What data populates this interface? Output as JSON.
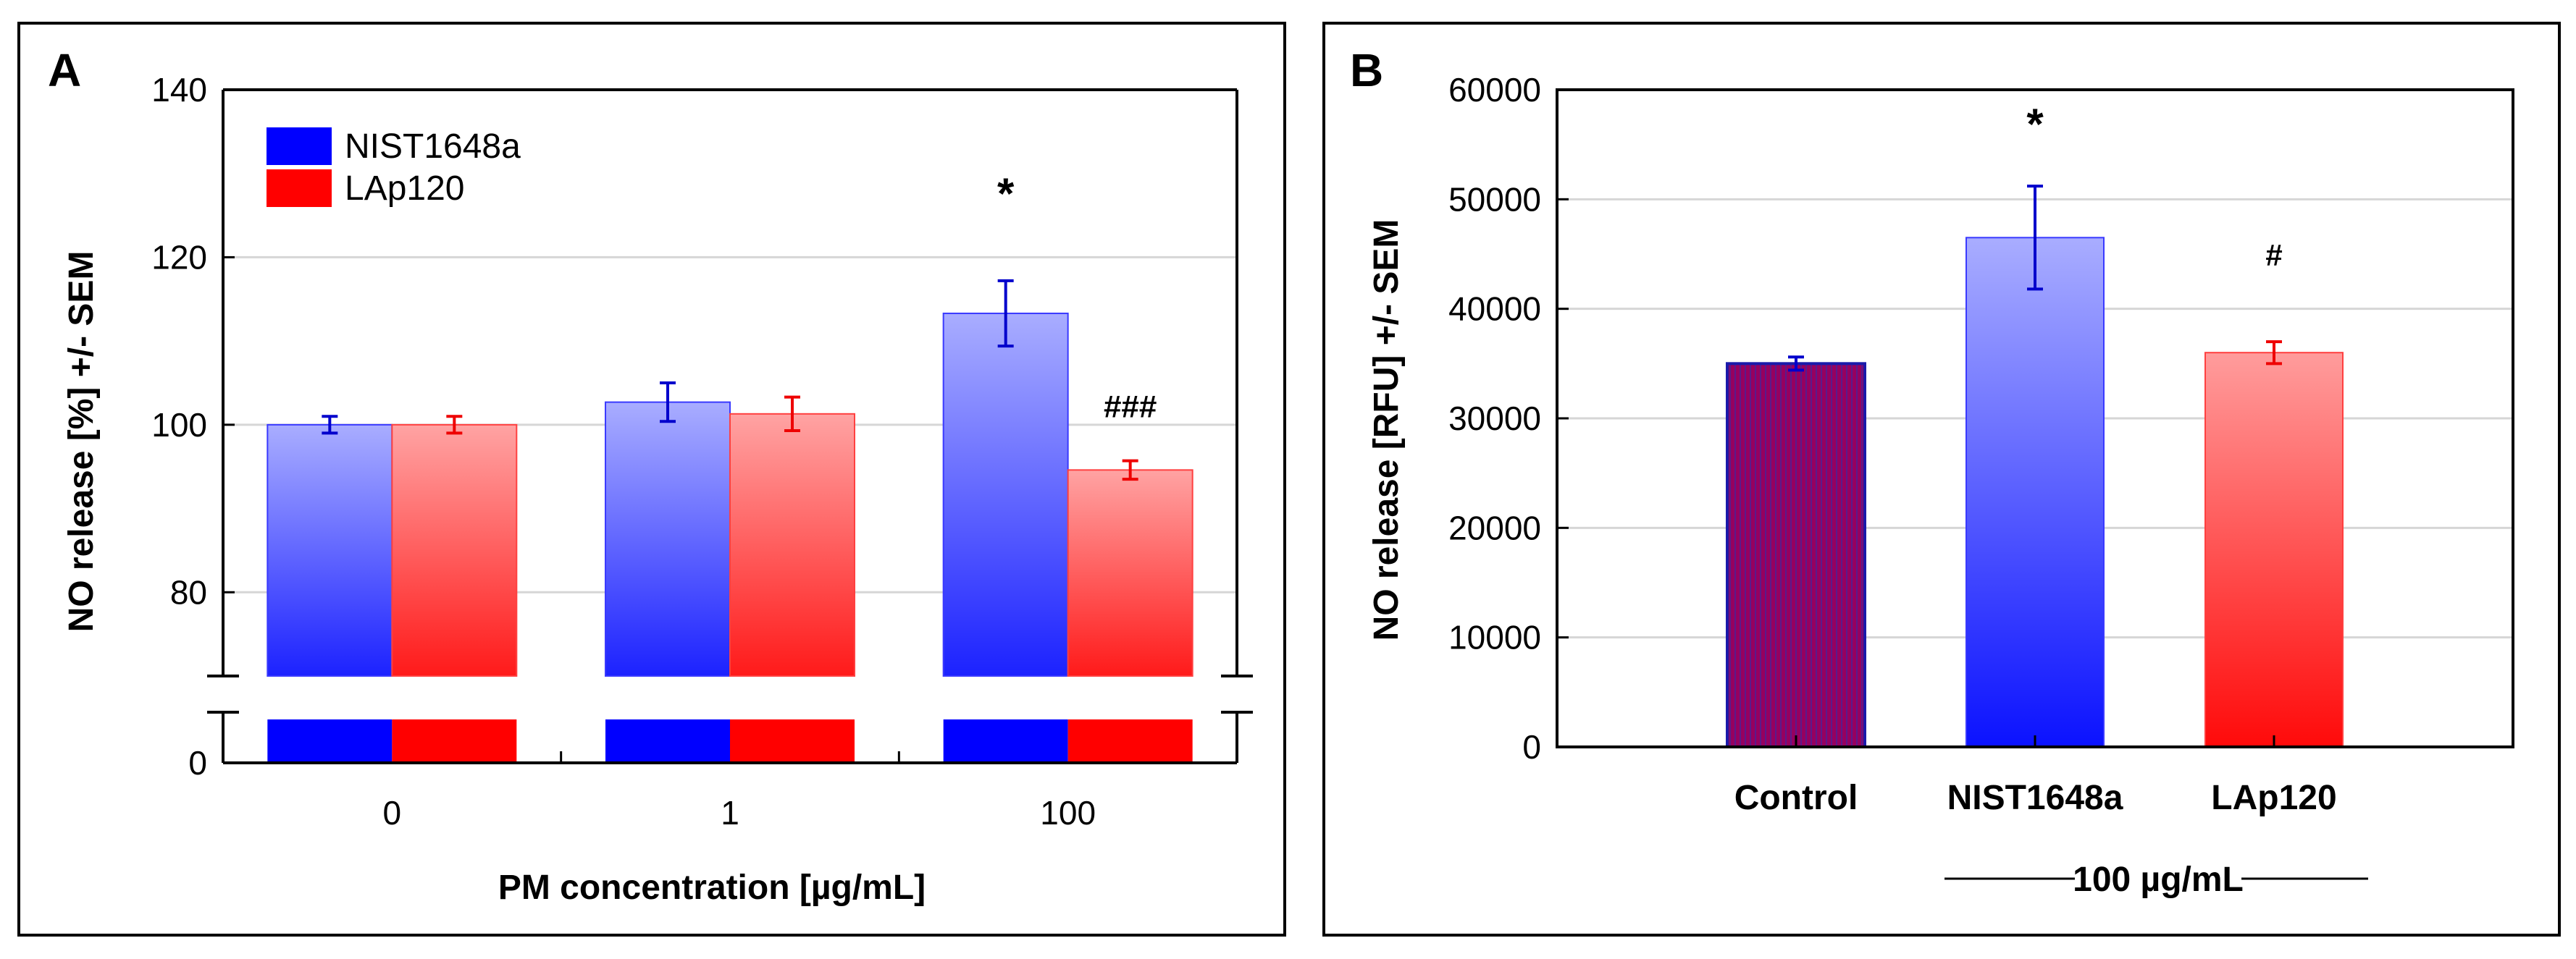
{
  "chart_data": [
    {
      "panel_label": "A",
      "type": "bar",
      "title": "",
      "xlabel": "PM concentration [µg/mL]",
      "ylabel": "NO release [%] +/- SEM",
      "categories": [
        "0",
        "1",
        "100"
      ],
      "yticks": [
        "0",
        "80",
        "100",
        "120",
        "140"
      ],
      "ylim": [
        70,
        140
      ],
      "axis_break": true,
      "legend": "top-left",
      "series": [
        {
          "name": "NIST1648a",
          "color": "#0000ff",
          "values": [
            100,
            102.7,
            113.3
          ],
          "errors": [
            1.0,
            2.3,
            3.9
          ]
        },
        {
          "name": "LAp120",
          "color": "#ff0000",
          "values": [
            100,
            101.3,
            94.6
          ],
          "errors": [
            1.0,
            2.0,
            1.1
          ]
        }
      ],
      "annotations": [
        {
          "text": "*",
          "category": 2,
          "series": 0
        },
        {
          "text": "###",
          "category": 2,
          "series": 1
        }
      ]
    },
    {
      "panel_label": "B",
      "type": "bar",
      "title": "",
      "xlabel": "100 µg/mL",
      "ylabel": "NO release [RFU] +/- SEM",
      "categories": [
        "Control",
        "NIST1648a",
        "LAp120"
      ],
      "yticks": [
        "0",
        "10000",
        "20000",
        "30000",
        "40000",
        "50000",
        "60000"
      ],
      "ylim": [
        0,
        60000
      ],
      "bars": [
        {
          "name": "Control",
          "value": 35000,
          "error": 600,
          "color": "#990066"
        },
        {
          "name": "NIST1648a",
          "value": 46500,
          "error": 4700,
          "color": "#0000ff"
        },
        {
          "name": "LAp120",
          "value": 36000,
          "error": 1000,
          "color": "#ff0000"
        }
      ],
      "annotations": [
        {
          "text": "*",
          "category": 1
        },
        {
          "text": "#",
          "category": 2
        }
      ]
    }
  ]
}
